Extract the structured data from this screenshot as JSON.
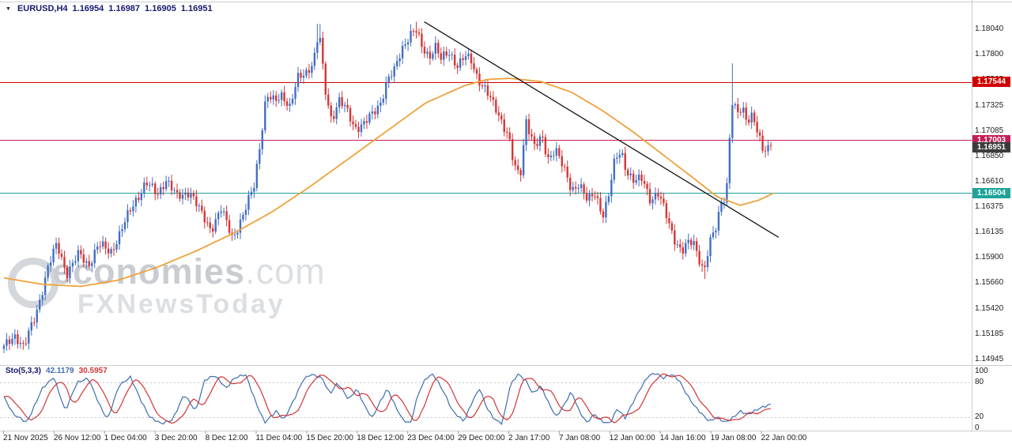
{
  "header": {
    "dropdown_icon": "▼",
    "symbol": "EURUSD,H4",
    "open": "1.16954",
    "high": "1.16987",
    "low": "1.16905",
    "close": "1.16951"
  },
  "watermark": {
    "brand": "economies",
    "brand_suffix": ".com",
    "subbrand": "FXNewsToday"
  },
  "chart_data": {
    "type": "candlestick",
    "symbol": "EURUSD",
    "timeframe": "H4",
    "current_ohlc": {
      "open": 1.16954,
      "high": 1.16987,
      "low": 1.16905,
      "close": 1.16951
    },
    "colors": {
      "up": "#416fc4",
      "down": "#d63535",
      "ma": "#efa23a",
      "trendline": "#151515",
      "separator": "#c9cdd1",
      "grid": "#c4c6c8",
      "current_badge": "#3c3c3c"
    },
    "y_axis": {
      "top_value": 1.1804,
      "bottom_value": 1.14945,
      "ticks": [
        "1.18040",
        "1.17800",
        "1.17565",
        "1.17325",
        "1.17085",
        "1.16850",
        "1.16610",
        "1.16375",
        "1.16135",
        "1.15900",
        "1.15660",
        "1.15420",
        "1.15185",
        "1.14945"
      ]
    },
    "x_axis": {
      "labels": [
        "21 Nov 2025",
        "26 Nov 12:00",
        "1 Dec 04:00",
        "3 Dec 20:00",
        "8 Dec 12:00",
        "11 Dec 04:00",
        "15 Dec 20:00",
        "18 Dec 12:00",
        "23 Dec 04:00",
        "29 Dec 00:00",
        "2 Jan 17:00",
        "7 Jan 08:00",
        "12 Jan 00:00",
        "14 Jan 16:00",
        "19 Jan 08:00",
        "22 Jan 00:00"
      ]
    },
    "levels": [
      {
        "label": "1.17544",
        "price": 1.17544,
        "color": "#d40000",
        "type": "resistance"
      },
      {
        "label": "1.17003",
        "price": 1.17003,
        "color": "#c41e54",
        "type": "resistance"
      },
      {
        "label": "1.16504",
        "price": 1.16504,
        "color": "#1ea397",
        "type": "support"
      }
    ],
    "current_price": {
      "label": "1.16951",
      "price": 1.16951
    },
    "trendline": {
      "from_t": 0.548,
      "from_price": 1.1811,
      "to_t": 1.01,
      "to_price": 1.1609
    },
    "wick_spikes": [
      {
        "t": 0.411,
        "high": 1.1809
      },
      {
        "t": 0.537,
        "high": 1.1811
      },
      {
        "t": 0.913,
        "low": 1.157
      },
      {
        "t": 0.949,
        "high": 1.1772
      }
    ],
    "price_path": [
      [
        0.0,
        1.1505
      ],
      [
        0.008,
        1.1512
      ],
      [
        0.015,
        1.1518
      ],
      [
        0.026,
        1.1506
      ],
      [
        0.041,
        1.1535
      ],
      [
        0.057,
        1.158
      ],
      [
        0.069,
        1.1602
      ],
      [
        0.082,
        1.1576
      ],
      [
        0.098,
        1.1593
      ],
      [
        0.11,
        1.1583
      ],
      [
        0.123,
        1.1602
      ],
      [
        0.139,
        1.1595
      ],
      [
        0.154,
        1.1617
      ],
      [
        0.17,
        1.1642
      ],
      [
        0.185,
        1.166
      ],
      [
        0.2,
        1.1649
      ],
      [
        0.211,
        1.1664
      ],
      [
        0.226,
        1.1646
      ],
      [
        0.242,
        1.1653
      ],
      [
        0.257,
        1.1631
      ],
      [
        0.27,
        1.1617
      ],
      [
        0.283,
        1.1635
      ],
      [
        0.298,
        1.1609
      ],
      [
        0.313,
        1.1631
      ],
      [
        0.326,
        1.1657
      ],
      [
        0.334,
        1.1698
      ],
      [
        0.342,
        1.1742
      ],
      [
        0.353,
        1.1735
      ],
      [
        0.363,
        1.1744
      ],
      [
        0.373,
        1.1731
      ],
      [
        0.383,
        1.1757
      ],
      [
        0.394,
        1.1764
      ],
      [
        0.404,
        1.1775
      ],
      [
        0.411,
        1.1803
      ],
      [
        0.418,
        1.1749
      ],
      [
        0.427,
        1.172
      ],
      [
        0.437,
        1.1738
      ],
      [
        0.447,
        1.1727
      ],
      [
        0.457,
        1.1712
      ],
      [
        0.47,
        1.1716
      ],
      [
        0.48,
        1.1723
      ],
      [
        0.49,
        1.1734
      ],
      [
        0.5,
        1.1757
      ],
      [
        0.509,
        1.1764
      ],
      [
        0.519,
        1.1786
      ],
      [
        0.529,
        1.18
      ],
      [
        0.537,
        1.1803
      ],
      [
        0.545,
        1.1786
      ],
      [
        0.555,
        1.1779
      ],
      [
        0.562,
        1.179
      ],
      [
        0.57,
        1.1775
      ],
      [
        0.581,
        1.1782
      ],
      [
        0.591,
        1.1771
      ],
      [
        0.601,
        1.1778
      ],
      [
        0.61,
        1.1773
      ],
      [
        0.617,
        1.176
      ],
      [
        0.627,
        1.1749
      ],
      [
        0.637,
        1.1734
      ],
      [
        0.648,
        1.172
      ],
      [
        0.658,
        1.1705
      ],
      [
        0.665,
        1.1675
      ],
      [
        0.673,
        1.1664
      ],
      [
        0.681,
        1.172
      ],
      [
        0.692,
        1.1694
      ],
      [
        0.702,
        1.1701
      ],
      [
        0.709,
        1.1682
      ],
      [
        0.719,
        1.1694
      ],
      [
        0.73,
        1.1672
      ],
      [
        0.74,
        1.1653
      ],
      [
        0.75,
        1.1661
      ],
      [
        0.761,
        1.1642
      ],
      [
        0.771,
        1.165
      ],
      [
        0.781,
        1.1631
      ],
      [
        0.788,
        1.1646
      ],
      [
        0.797,
        1.1682
      ],
      [
        0.805,
        1.169
      ],
      [
        0.812,
        1.1672
      ],
      [
        0.822,
        1.166
      ],
      [
        0.833,
        1.1664
      ],
      [
        0.843,
        1.1645
      ],
      [
        0.853,
        1.1649
      ],
      [
        0.863,
        1.1631
      ],
      [
        0.874,
        1.1609
      ],
      [
        0.884,
        1.1594
      ],
      [
        0.891,
        1.1602
      ],
      [
        0.899,
        1.1606
      ],
      [
        0.908,
        1.1587
      ],
      [
        0.913,
        1.1576
      ],
      [
        0.92,
        1.1602
      ],
      [
        0.928,
        1.1617
      ],
      [
        0.935,
        1.1643
      ],
      [
        0.942,
        1.165
      ],
      [
        0.949,
        1.1735
      ],
      [
        0.956,
        1.1724
      ],
      [
        0.963,
        1.1731
      ],
      [
        0.969,
        1.172
      ],
      [
        0.976,
        1.1724
      ],
      [
        0.983,
        1.1705
      ],
      [
        0.989,
        1.169
      ],
      [
        1.0,
        1.16951
      ]
    ],
    "ma_path": [
      [
        0.0,
        1.1571
      ],
      [
        0.05,
        1.1565
      ],
      [
        0.1,
        1.1563
      ],
      [
        0.15,
        1.1569
      ],
      [
        0.2,
        1.1581
      ],
      [
        0.25,
        1.1596
      ],
      [
        0.3,
        1.1613
      ],
      [
        0.35,
        1.1633
      ],
      [
        0.4,
        1.1657
      ],
      [
        0.45,
        1.1683
      ],
      [
        0.5,
        1.1709
      ],
      [
        0.55,
        1.1735
      ],
      [
        0.6,
        1.1751
      ],
      [
        0.63,
        1.1757
      ],
      [
        0.66,
        1.1758
      ],
      [
        0.7,
        1.1755
      ],
      [
        0.74,
        1.1745
      ],
      [
        0.78,
        1.1728
      ],
      [
        0.82,
        1.1708
      ],
      [
        0.86,
        1.1686
      ],
      [
        0.9,
        1.1664
      ],
      [
        0.93,
        1.1647
      ],
      [
        0.96,
        1.1639
      ],
      [
        0.985,
        1.1644
      ],
      [
        1.005,
        1.1651
      ]
    ],
    "stochastic": {
      "name": "Sto(5,3,3)",
      "main_value": "42.1179",
      "signal_value": "30.5957",
      "main_color": "#3e6db0",
      "signal_color": "#d23535",
      "range": [
        0,
        100
      ],
      "level_lines": [
        20,
        80
      ],
      "scale_labels": [
        "100",
        "80",
        "20",
        "0"
      ],
      "scale_values": [
        100,
        80,
        20,
        0
      ],
      "path": [
        [
          0.0,
          55
        ],
        [
          0.012,
          25
        ],
        [
          0.03,
          10
        ],
        [
          0.05,
          70
        ],
        [
          0.065,
          90
        ],
        [
          0.08,
          30
        ],
        [
          0.095,
          80
        ],
        [
          0.11,
          88
        ],
        [
          0.125,
          40
        ],
        [
          0.135,
          15
        ],
        [
          0.15,
          75
        ],
        [
          0.165,
          90
        ],
        [
          0.18,
          45
        ],
        [
          0.19,
          20
        ],
        [
          0.205,
          8
        ],
        [
          0.22,
          15
        ],
        [
          0.235,
          60
        ],
        [
          0.25,
          30
        ],
        [
          0.262,
          85
        ],
        [
          0.275,
          93
        ],
        [
          0.29,
          70
        ],
        [
          0.3,
          88
        ],
        [
          0.315,
          95
        ],
        [
          0.33,
          40
        ],
        [
          0.34,
          10
        ],
        [
          0.355,
          30
        ],
        [
          0.365,
          15
        ],
        [
          0.38,
          55
        ],
        [
          0.39,
          85
        ],
        [
          0.4,
          95
        ],
        [
          0.415,
          88
        ],
        [
          0.425,
          60
        ],
        [
          0.435,
          80
        ],
        [
          0.45,
          50
        ],
        [
          0.46,
          70
        ],
        [
          0.47,
          40
        ],
        [
          0.48,
          18
        ],
        [
          0.49,
          45
        ],
        [
          0.5,
          70
        ],
        [
          0.51,
          40
        ],
        [
          0.52,
          15
        ],
        [
          0.53,
          8
        ],
        [
          0.54,
          60
        ],
        [
          0.55,
          88
        ],
        [
          0.56,
          95
        ],
        [
          0.575,
          60
        ],
        [
          0.585,
          30
        ],
        [
          0.6,
          12
        ],
        [
          0.61,
          45
        ],
        [
          0.62,
          70
        ],
        [
          0.63,
          35
        ],
        [
          0.64,
          15
        ],
        [
          0.65,
          8
        ],
        [
          0.66,
          75
        ],
        [
          0.67,
          95
        ],
        [
          0.68,
          85
        ],
        [
          0.69,
          60
        ],
        [
          0.7,
          75
        ],
        [
          0.71,
          45
        ],
        [
          0.72,
          20
        ],
        [
          0.73,
          40
        ],
        [
          0.74,
          65
        ],
        [
          0.75,
          30
        ],
        [
          0.76,
          10
        ],
        [
          0.77,
          25
        ],
        [
          0.78,
          12
        ],
        [
          0.79,
          8
        ],
        [
          0.8,
          35
        ],
        [
          0.81,
          18
        ],
        [
          0.82,
          45
        ],
        [
          0.83,
          70
        ],
        [
          0.84,
          92
        ],
        [
          0.85,
          97
        ],
        [
          0.86,
          88
        ],
        [
          0.87,
          95
        ],
        [
          0.88,
          85
        ],
        [
          0.89,
          60
        ],
        [
          0.9,
          40
        ],
        [
          0.91,
          25
        ],
        [
          0.92,
          12
        ],
        [
          0.93,
          20
        ],
        [
          0.94,
          10
        ],
        [
          0.95,
          18
        ],
        [
          0.96,
          30
        ],
        [
          0.97,
          24
        ],
        [
          0.985,
          35
        ],
        [
          1.0,
          42.1
        ]
      ]
    }
  }
}
